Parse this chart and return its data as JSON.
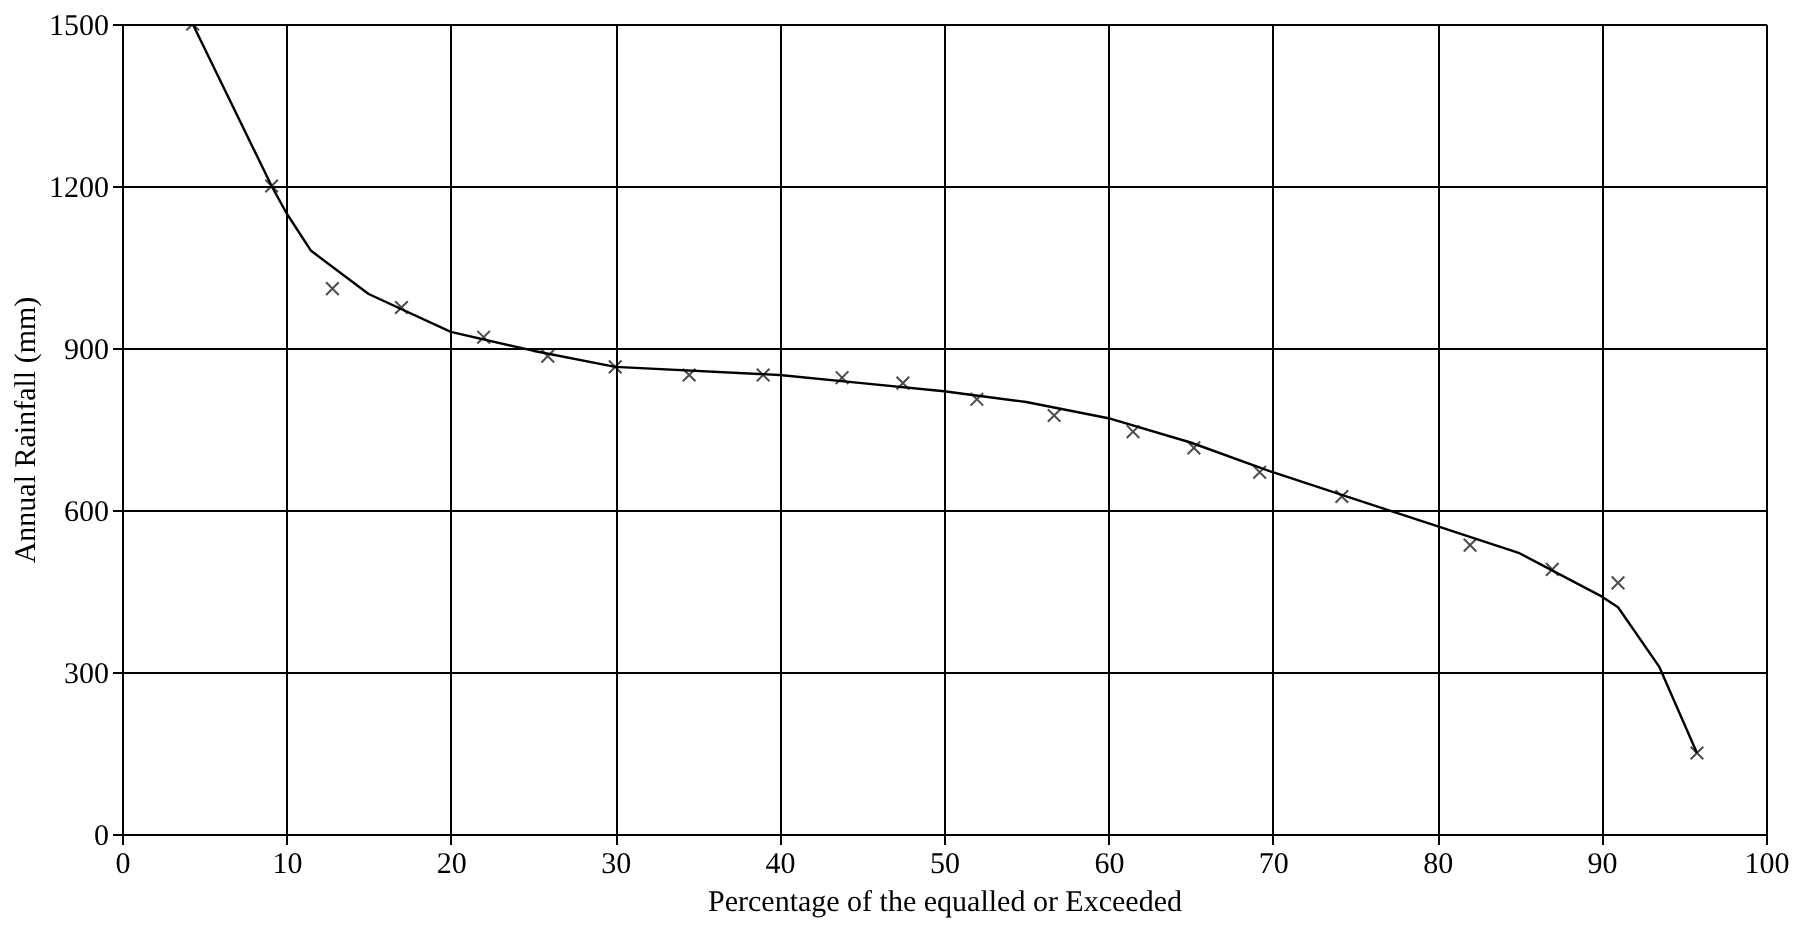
{
  "chart_data": {
    "type": "scatter",
    "xlabel": "Percentage of the equalled or Exceeded",
    "ylabel": "Annual Rainfall (mm)",
    "xlim": [
      0,
      100
    ],
    "xticks": [
      0,
      10,
      20,
      30,
      40,
      50,
      60,
      70,
      80,
      90,
      100
    ],
    "ylim": [
      0,
      1500
    ],
    "yticks": [
      0,
      300,
      600,
      900,
      1200,
      1500
    ],
    "grid": true,
    "series": [
      {
        "marker": "cross",
        "color": "#000000",
        "x": [
          4.3,
          9.1,
          12.8,
          17,
          22,
          25.9,
          30,
          34.5,
          39,
          43.8,
          47.5,
          52,
          56.7,
          61.5,
          65.2,
          69.2,
          74.2,
          82,
          87,
          91,
          95.8
        ],
        "values": [
          1500,
          1200,
          1010,
          975,
          920,
          885,
          865,
          850,
          850,
          845,
          835,
          805,
          775,
          745,
          715,
          670,
          625,
          535,
          490,
          465,
          150
        ]
      },
      {
        "type": "line",
        "marker": "none",
        "line_style": "solid",
        "color": "#000000",
        "x": [
          4.3,
          9.1,
          10,
          11.5,
          15,
          20,
          25,
          30,
          40,
          45,
          50,
          55,
          60,
          65,
          70,
          76,
          80,
          85,
          90,
          91,
          93.5,
          95.8
        ],
        "values": [
          1500,
          1200,
          1150,
          1080,
          1000,
          930,
          895,
          865,
          850,
          835,
          820,
          800,
          770,
          725,
          670,
          610,
          570,
          520,
          440,
          420,
          310,
          150
        ]
      }
    ]
  }
}
